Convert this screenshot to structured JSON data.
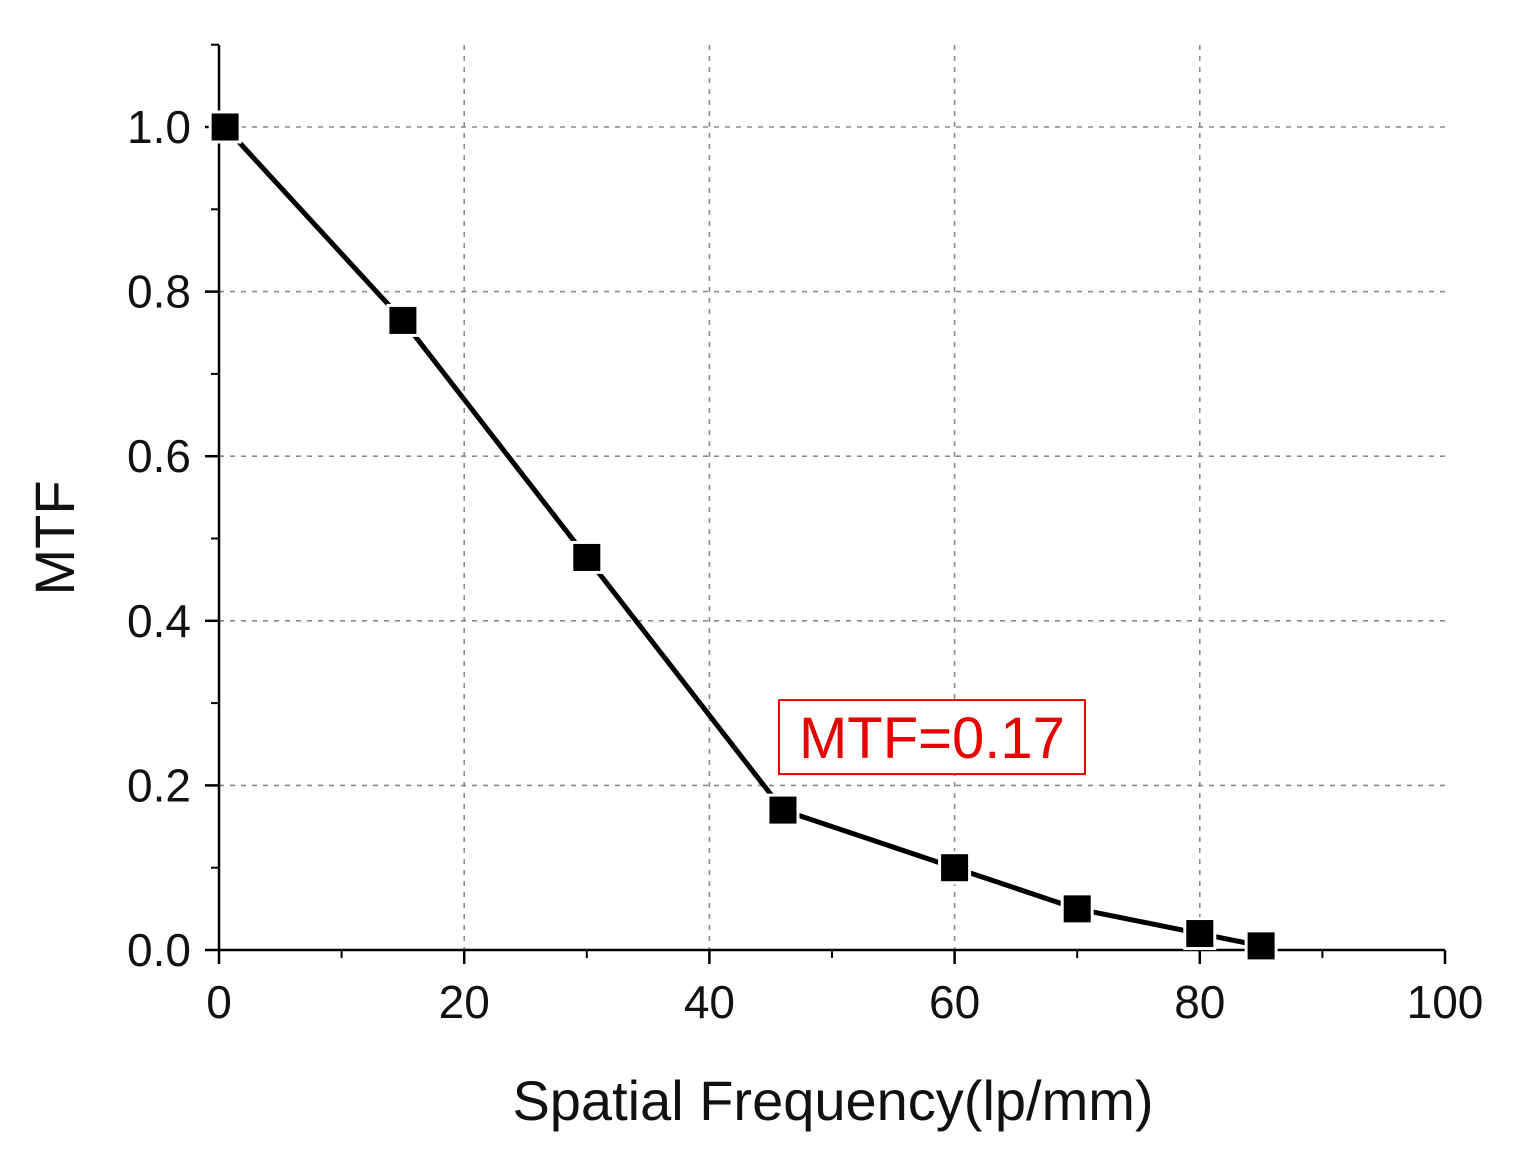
{
  "chart_data": {
    "type": "line",
    "title": "",
    "xlabel": "Spatial Frequency(lp/mm)",
    "ylabel": "MTF",
    "xlim": [
      0,
      100
    ],
    "ylim": [
      0,
      1.1
    ],
    "x_ticks": [
      0,
      20,
      40,
      60,
      80,
      100
    ],
    "x_tick_labels": [
      "0",
      "20",
      "40",
      "60",
      "80",
      "100"
    ],
    "y_ticks": [
      0,
      0.2,
      0.4,
      0.6,
      0.8,
      1.0
    ],
    "y_tick_labels": [
      "0.0",
      "0.2",
      "0.4",
      "0.6",
      "0.8",
      "1.0"
    ],
    "x_minor_ticks": [
      10,
      30,
      50,
      70,
      90
    ],
    "y_minor_ticks": [
      0.1,
      0.3,
      0.5,
      0.7,
      0.9
    ],
    "grid": true,
    "series": [
      {
        "name": "MTF",
        "marker": "square",
        "color": "#000000",
        "x": [
          0.5,
          15,
          30,
          46,
          60,
          70,
          80,
          85
        ],
        "y": [
          1.0,
          0.765,
          0.477,
          0.17,
          0.1,
          0.05,
          0.02,
          0.005
        ]
      }
    ],
    "annotations": [
      {
        "text": "MTF=0.17",
        "color": "#e60000",
        "anchor_x": 46,
        "anchor_y": 0.17,
        "boxed": true
      }
    ]
  }
}
